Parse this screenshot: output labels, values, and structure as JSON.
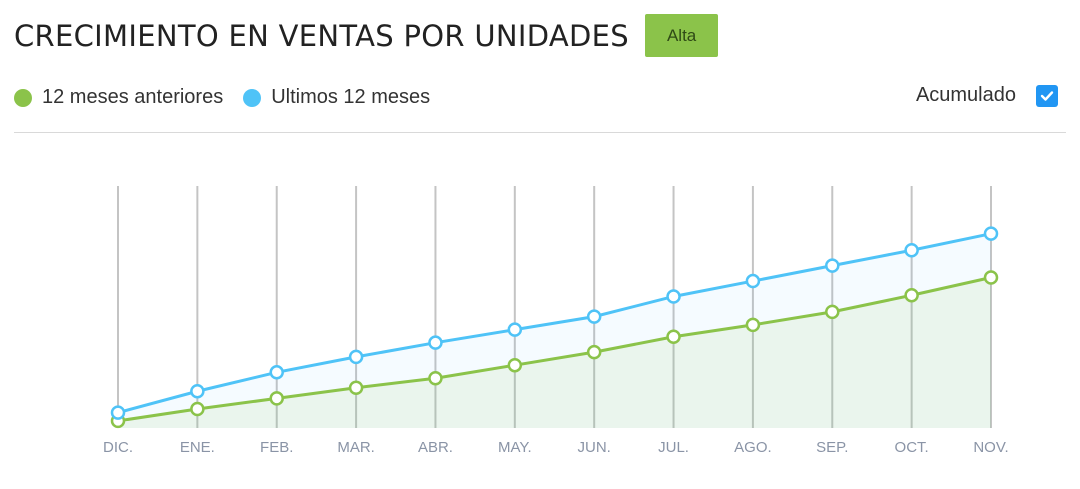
{
  "header": {
    "title": "CRECIMIENTO EN VENTAS POR UNIDADES",
    "badge": "Alta"
  },
  "legend": [
    {
      "label": "12 meses anteriores",
      "color": "#8bc34a"
    },
    {
      "label": "Ultimos 12 meses",
      "color": "#4fc3f7"
    }
  ],
  "options": {
    "accumulated_label": "Acumulado",
    "accumulated_checked": true
  },
  "chart_data": {
    "type": "line",
    "categories": [
      "DIC.",
      "ENE.",
      "FEB.",
      "MAR.",
      "ABR.",
      "MAY.",
      "JUN.",
      "JUL.",
      "AGO.",
      "SEP.",
      "OCT.",
      "NOV."
    ],
    "series": [
      {
        "name": "12 meses anteriores",
        "color": "#8bc34a",
        "values": [
          3,
          8,
          12.5,
          17,
          21,
          26.5,
          32,
          38.5,
          43.5,
          49,
          56,
          63.5
        ]
      },
      {
        "name": "Ultimos 12 meses",
        "color": "#4fc3f7",
        "values": [
          6.5,
          15.5,
          23.5,
          30,
          36,
          41.5,
          47,
          55.5,
          62,
          68.5,
          75,
          82
        ]
      }
    ],
    "ylim": [
      0,
      100
    ],
    "grid": "vertical"
  }
}
